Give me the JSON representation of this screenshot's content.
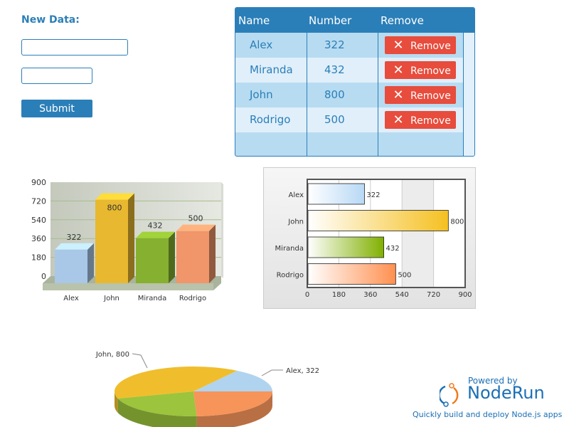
{
  "form": {
    "title": "New Data:",
    "name_value": "",
    "number_value": "",
    "submit_label": "Submit"
  },
  "table": {
    "headers": [
      "Name",
      "Number",
      "Remove"
    ],
    "rows": [
      {
        "name": "Alex",
        "number": "322"
      },
      {
        "name": "Miranda",
        "number": "432"
      },
      {
        "name": "John",
        "number": "800"
      },
      {
        "name": "Rodrigo",
        "number": "500"
      }
    ],
    "remove_label": "Remove",
    "header_color": "#2b7fb8",
    "remove_color": "#e74c3c"
  },
  "chart_data": [
    {
      "type": "bar",
      "style": "3d-column",
      "categories": [
        "Alex",
        "John",
        "Miranda",
        "Rodrigo"
      ],
      "values": [
        322,
        800,
        432,
        500
      ],
      "ylim": [
        0,
        900
      ],
      "yticks": [
        0,
        180,
        360,
        540,
        720,
        900
      ],
      "grid": true,
      "colors": [
        "#a9c8e8",
        "#e8b830",
        "#86b030",
        "#f0966a"
      ]
    },
    {
      "type": "bar",
      "style": "horizontal",
      "categories": [
        "Alex",
        "John",
        "Miranda",
        "Rodrigo"
      ],
      "values": [
        322,
        800,
        432,
        500
      ],
      "xlim": [
        0,
        900
      ],
      "xticks": [
        0,
        180,
        360,
        540,
        720,
        900
      ],
      "grid": true,
      "colors": [
        "#b7d8f5",
        "#f5c020",
        "#80b000",
        "#ff9050"
      ]
    },
    {
      "type": "pie",
      "style": "3d",
      "categories": [
        "Alex",
        "John",
        "Miranda",
        "Rodrigo"
      ],
      "values": [
        322,
        800,
        432,
        500
      ],
      "labels": [
        "Alex, 322",
        "John, 800"
      ],
      "colors": [
        "#b0d4ef",
        "#f0be2c",
        "#9cc43c",
        "#f7945a"
      ]
    }
  ],
  "branding": {
    "powered": "Powered by",
    "name": "NodeRun",
    "tagline": "Quickly build and deploy Node.js apps"
  }
}
